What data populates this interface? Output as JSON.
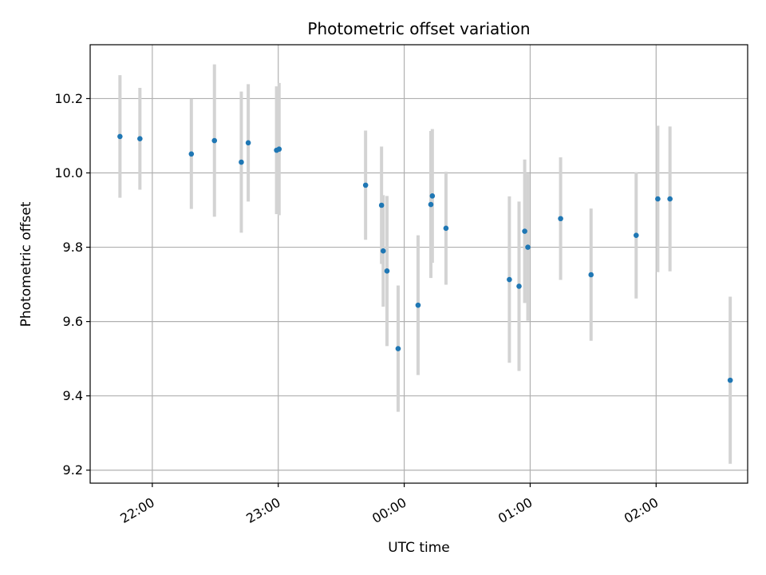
{
  "chart_data": {
    "type": "scatter",
    "title": "Photometric offset variation",
    "xlabel": "UTC time",
    "ylabel": "Photometric offset",
    "grid": true,
    "x_unit": "minutes since 22:00",
    "xlim": [
      -29.6,
      283.6
    ],
    "ylim": [
      9.165,
      10.345
    ],
    "x_ticks": [
      {
        "value": 0,
        "label": "22:00"
      },
      {
        "value": 60,
        "label": "23:00"
      },
      {
        "value": 120,
        "label": "00:00"
      },
      {
        "value": 180,
        "label": "01:00"
      },
      {
        "value": 240,
        "label": "02:00"
      }
    ],
    "y_ticks": [
      {
        "value": 9.2,
        "label": "9.2"
      },
      {
        "value": 9.4,
        "label": "9.4"
      },
      {
        "value": 9.6,
        "label": "9.6"
      },
      {
        "value": 9.8,
        "label": "9.8"
      },
      {
        "value": 10.0,
        "label": "10.0"
      },
      {
        "value": 10.2,
        "label": "10.2"
      }
    ],
    "point_color": "#1f77b4",
    "errorbar_color": "#d3d3d3",
    "points": [
      {
        "x": -15.4,
        "y": 10.098,
        "err": 0.165
      },
      {
        "x": -5.9,
        "y": 10.092,
        "err": 0.137
      },
      {
        "x": 18.6,
        "y": 10.051,
        "err": 0.148
      },
      {
        "x": 29.6,
        "y": 10.087,
        "err": 0.205
      },
      {
        "x": 42.4,
        "y": 10.029,
        "err": 0.19
      },
      {
        "x": 45.7,
        "y": 10.081,
        "err": 0.158
      },
      {
        "x": 59.2,
        "y": 10.061,
        "err": 0.172
      },
      {
        "x": 60.4,
        "y": 10.064,
        "err": 0.178
      },
      {
        "x": 101.6,
        "y": 9.967,
        "err": 0.147
      },
      {
        "x": 109.2,
        "y": 9.913,
        "err": 0.158
      },
      {
        "x": 110.0,
        "y": 9.79,
        "err": 0.15
      },
      {
        "x": 111.8,
        "y": 9.736,
        "err": 0.202
      },
      {
        "x": 117.1,
        "y": 9.527,
        "err": 0.17
      },
      {
        "x": 126.6,
        "y": 9.644,
        "err": 0.188
      },
      {
        "x": 132.7,
        "y": 9.915,
        "err": 0.198
      },
      {
        "x": 133.4,
        "y": 9.938,
        "err": 0.18
      },
      {
        "x": 139.9,
        "y": 9.851,
        "err": 0.152
      },
      {
        "x": 170.1,
        "y": 9.713,
        "err": 0.224
      },
      {
        "x": 174.7,
        "y": 9.695,
        "err": 0.228
      },
      {
        "x": 177.4,
        "y": 9.843,
        "err": 0.193
      },
      {
        "x": 178.9,
        "y": 9.8,
        "err": 0.198
      },
      {
        "x": 194.5,
        "y": 9.877,
        "err": 0.165
      },
      {
        "x": 209.0,
        "y": 9.726,
        "err": 0.178
      },
      {
        "x": 230.5,
        "y": 9.832,
        "err": 0.17
      },
      {
        "x": 240.8,
        "y": 9.93,
        "err": 0.197
      },
      {
        "x": 246.6,
        "y": 9.93,
        "err": 0.195
      },
      {
        "x": 275.3,
        "y": 9.442,
        "err": 0.225
      }
    ]
  }
}
